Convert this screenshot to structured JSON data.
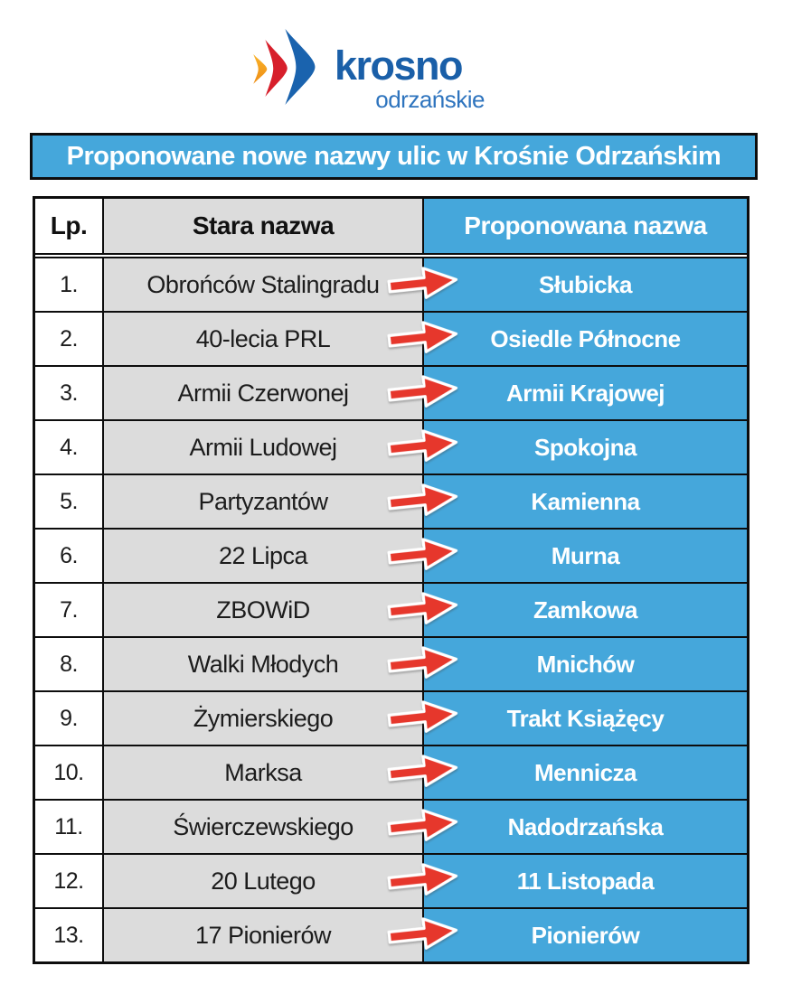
{
  "logo": {
    "title": "krosno",
    "subtitle": "odrzańskie"
  },
  "banner": {
    "title": "Proponowane nowe nazwy ulic w Krośnie Odrzańskim"
  },
  "table": {
    "columns": [
      "Lp.",
      "Stara nazwa",
      "Proponowana nazwa"
    ],
    "rows": [
      {
        "num": "1.",
        "old": "Obrońców Stalingradu",
        "new": "Słubicka"
      },
      {
        "num": "2.",
        "old": "40-lecia PRL",
        "new": "Osiedle Północne"
      },
      {
        "num": "3.",
        "old": "Armii Czerwonej",
        "new": "Armii Krajowej"
      },
      {
        "num": "4.",
        "old": "Armii Ludowej",
        "new": "Spokojna"
      },
      {
        "num": "5.",
        "old": "Partyzantów",
        "new": "Kamienna"
      },
      {
        "num": "6.",
        "old": "22 Lipca",
        "new": "Murna"
      },
      {
        "num": "7.",
        "old": "ZBOWiD",
        "new": "Zamkowa"
      },
      {
        "num": "8.",
        "old": "Walki Młodych",
        "new": "Mnichów"
      },
      {
        "num": "9.",
        "old": "Żymierskiego",
        "new": "Trakt Książęcy"
      },
      {
        "num": "10.",
        "old": "Marksa",
        "new": "Mennicza"
      },
      {
        "num": "11.",
        "old": "Świerczewskiego",
        "new": "Nadodrzańska"
      },
      {
        "num": "12.",
        "old": "20 Lutego",
        "new": "11 Listopada"
      },
      {
        "num": "13.",
        "old": "17 Pionierów",
        "new": "Pionierów"
      }
    ]
  },
  "colors": {
    "blue": "#45A7DB",
    "gray": "#DCDCDC",
    "arrow_red": "#E6372C",
    "border": "#0d0d0d",
    "logo_blue": "#1A63AE",
    "logo_red": "#D71F2B",
    "logo_orange": "#F5A01F",
    "logo_text_blue": "#1A5FA8",
    "logo_subtext_blue": "#2E74BE"
  }
}
